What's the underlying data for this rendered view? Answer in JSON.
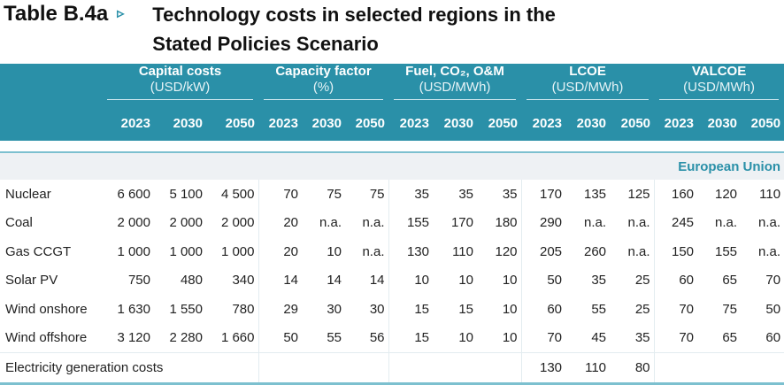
{
  "title": {
    "label": "Table B.4a",
    "line1": "Technology costs in selected regions in the",
    "line2": "Stated Policies Scenario"
  },
  "groups": [
    {
      "name": "Capital costs",
      "unit": "(USD/kW)"
    },
    {
      "name": "Capacity factor",
      "unit": "(%)"
    },
    {
      "name": "Fuel, CO₂, O&M",
      "unit": "(USD/MWh)"
    },
    {
      "name": "LCOE",
      "unit": "(USD/MWh)"
    },
    {
      "name": "VALCOE",
      "unit": "(USD/MWh)"
    }
  ],
  "years": [
    "2023",
    "2030",
    "2050"
  ],
  "region": "European Union",
  "rows": [
    {
      "label": "Nuclear",
      "v": [
        "6 600",
        "5 100",
        "4 500",
        "70",
        "75",
        "75",
        "35",
        "35",
        "35",
        "170",
        "135",
        "125",
        "160",
        "120",
        "110"
      ]
    },
    {
      "label": "Coal",
      "v": [
        "2 000",
        "2 000",
        "2 000",
        "20",
        "n.a.",
        "n.a.",
        "155",
        "170",
        "180",
        "290",
        "n.a.",
        "n.a.",
        "245",
        "n.a.",
        "n.a."
      ]
    },
    {
      "label": "Gas CCGT",
      "v": [
        "1 000",
        "1 000",
        "1 000",
        "20",
        "10",
        "n.a.",
        "130",
        "110",
        "120",
        "205",
        "260",
        "n.a.",
        "150",
        "155",
        "n.a."
      ]
    },
    {
      "label": "Solar PV",
      "v": [
        "750",
        "480",
        "340",
        "14",
        "14",
        "14",
        "10",
        "10",
        "10",
        "50",
        "35",
        "25",
        "60",
        "65",
        "70"
      ]
    },
    {
      "label": "Wind onshore",
      "v": [
        "1 630",
        "1 550",
        "780",
        "29",
        "30",
        "30",
        "15",
        "15",
        "10",
        "60",
        "55",
        "25",
        "70",
        "75",
        "50"
      ]
    },
    {
      "label": "Wind offshore",
      "v": [
        "3 120",
        "2 280",
        "1 660",
        "50",
        "55",
        "56",
        "15",
        "10",
        "10",
        "70",
        "45",
        "35",
        "70",
        "65",
        "60"
      ]
    }
  ],
  "total": {
    "label": "Electricity generation costs",
    "lcoe": [
      "130",
      "110",
      "80"
    ]
  }
}
